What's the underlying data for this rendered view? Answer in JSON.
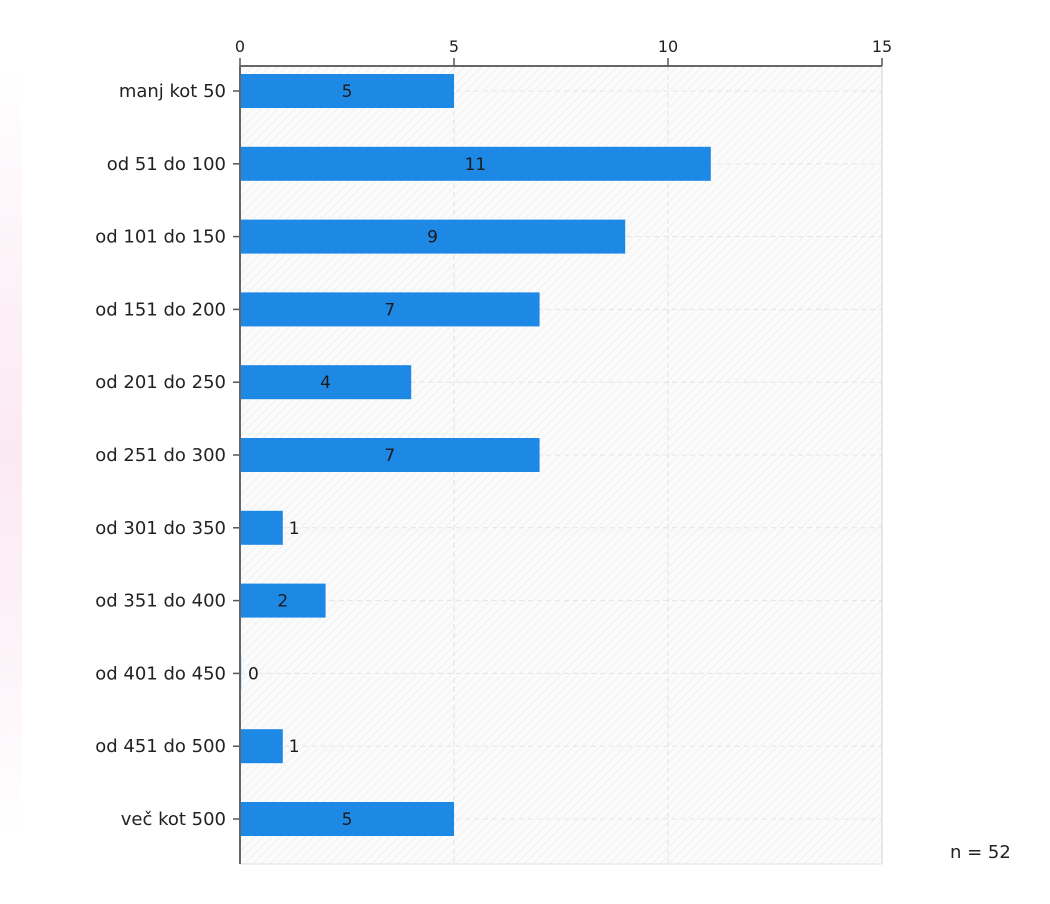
{
  "chart_data": {
    "type": "bar",
    "orientation": "horizontal",
    "categories": [
      "manj kot 50",
      "od 51 do 100",
      "od 101 do 150",
      "od 151 do 200",
      "od 201 do 250",
      "od 251 do 300",
      "od 301 do 350",
      "od 351 do 400",
      "od 401 do 450",
      "od 451 do 500",
      "več kot 500"
    ],
    "values": [
      5,
      11,
      9,
      7,
      4,
      7,
      1,
      2,
      0,
      1,
      5
    ],
    "xlim": [
      0,
      15
    ],
    "xticks": [
      "0",
      "5",
      "10",
      "15"
    ],
    "x_axis_position": "top",
    "grid": true,
    "bar_color": "#1e88e5",
    "title": "",
    "xlabel": "",
    "ylabel": "",
    "annotation": "n = 52"
  }
}
